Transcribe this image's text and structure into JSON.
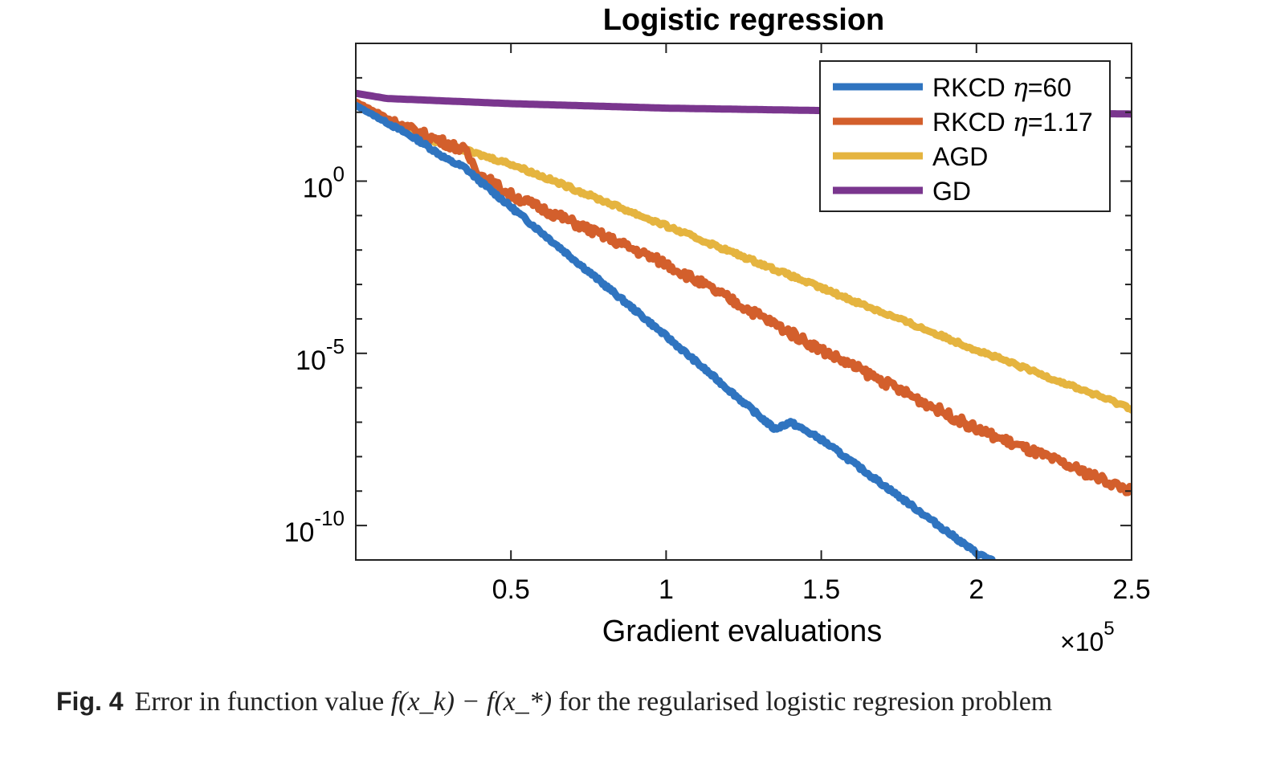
{
  "chart_data": {
    "type": "line",
    "title": "Logistic regression",
    "xlabel": "Gradient evaluations",
    "x_multiplier": "×10",
    "x_multiplier_exp": "5",
    "xlim": [
      0,
      2.5
    ],
    "ylim_log10": [
      -11,
      4
    ],
    "yscale": "log",
    "xticks": [
      {
        "value": 0.5,
        "label": "0.5"
      },
      {
        "value": 1,
        "label": "1"
      },
      {
        "value": 1.5,
        "label": "1.5"
      },
      {
        "value": 2,
        "label": "2"
      },
      {
        "value": 2.5,
        "label": "2.5"
      }
    ],
    "yticks": [
      {
        "exp": 0,
        "base": "10",
        "sup": "0"
      },
      {
        "exp": -5,
        "base": "10",
        "sup": "-5"
      },
      {
        "exp": -10,
        "base": "10",
        "sup": "-10"
      }
    ],
    "legend_position": "top-right",
    "series": [
      {
        "name": "RKCD η=60",
        "label_prefix": "RKCD ",
        "label_eta": "η",
        "label_suffix": "=60",
        "color": "#2f74c0",
        "x": [
          0,
          0.2,
          0.3,
          0.35,
          0.4,
          1.0,
          1.35,
          1.4,
          1.5,
          2.0,
          2.05
        ],
        "log10_y": [
          2.2,
          1.2,
          0.6,
          0.4,
          0.0,
          -4.5,
          -7.2,
          -7.0,
          -7.5,
          -10.8,
          -11.0
        ],
        "noise": 0.05
      },
      {
        "name": "RKCD η=1.17",
        "label_prefix": "RKCD ",
        "label_eta": "η",
        "label_suffix": "=1.17",
        "color": "#d35f2c",
        "x": [
          0,
          0.15,
          0.35,
          0.4,
          0.5,
          1.0,
          1.5,
          2.0,
          2.5
        ],
        "log10_y": [
          2.3,
          1.6,
          0.9,
          0.2,
          -0.4,
          -2.4,
          -4.9,
          -7.2,
          -9.0
        ],
        "noise": 0.13
      },
      {
        "name": "AGD",
        "label_prefix": "AGD",
        "label_eta": "",
        "label_suffix": "",
        "color": "#e5b43f",
        "x": [
          0,
          0.2,
          0.5,
          1.0,
          1.5,
          2.0,
          2.5
        ],
        "log10_y": [
          2.3,
          1.3,
          0.5,
          -1.3,
          -3.1,
          -4.9,
          -6.6
        ],
        "noise": 0.05
      },
      {
        "name": "GD",
        "label_prefix": "GD",
        "label_eta": "",
        "label_suffix": "",
        "color": "#7a368e",
        "x": [
          0,
          0.1,
          0.5,
          1.0,
          1.5,
          2.0,
          2.5
        ],
        "log10_y": [
          2.55,
          2.4,
          2.25,
          2.12,
          2.05,
          2.0,
          1.95
        ],
        "noise": 0
      }
    ]
  },
  "caption": {
    "fig_label": "Fig. 4",
    "text_before": "Error in function value ",
    "math": "f(x_k) − f(x_*)",
    "text_after": " for the regularised logistic regresion problem"
  }
}
